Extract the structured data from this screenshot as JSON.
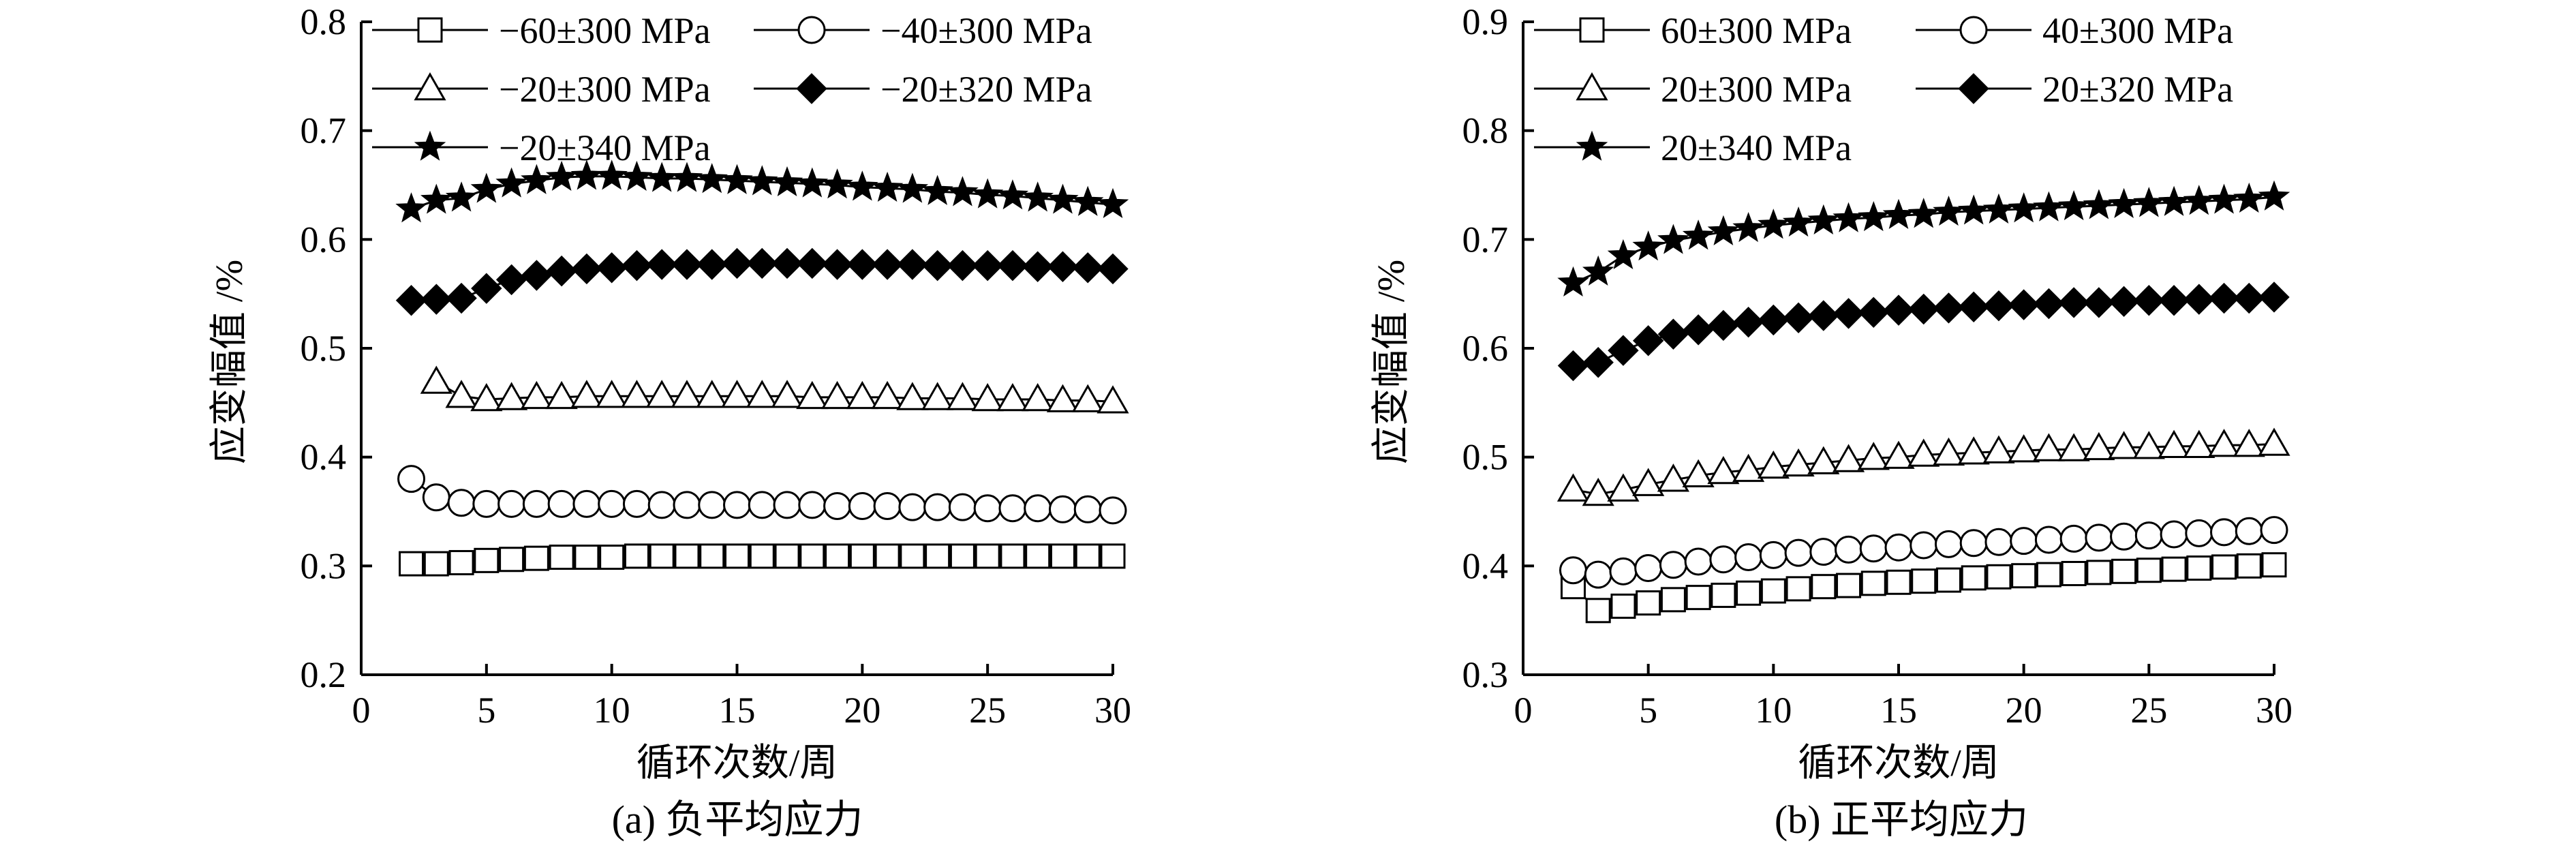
{
  "chart_data": [
    {
      "type": "line",
      "caption": "(a) 负平均应力",
      "ylabel": "应变幅值 /%",
      "xlabel": "循环次数/周",
      "xlim": [
        0,
        30
      ],
      "ylim": [
        0.2,
        0.8
      ],
      "xticks": [
        "0",
        "5",
        "10",
        "15",
        "20",
        "25",
        "30"
      ],
      "yticks": [
        "0.2",
        "0.3",
        "0.4",
        "0.5",
        "0.6",
        "0.7",
        "0.8"
      ],
      "legend": "top-left",
      "series": [
        {
          "name": "−60±300 MPa",
          "marker": "square",
          "x": [
            2,
            3,
            4,
            5,
            6,
            7,
            8,
            9,
            10,
            11,
            12,
            13,
            14,
            15,
            16,
            17,
            18,
            19,
            20,
            21,
            22,
            23,
            24,
            25,
            26,
            27,
            28,
            29,
            30
          ],
          "values": [
            0.302,
            0.302,
            0.303,
            0.305,
            0.306,
            0.307,
            0.308,
            0.308,
            0.308,
            0.309,
            0.309,
            0.309,
            0.309,
            0.309,
            0.309,
            0.309,
            0.309,
            0.309,
            0.309,
            0.309,
            0.309,
            0.309,
            0.309,
            0.309,
            0.309,
            0.309,
            0.309,
            0.309,
            0.309
          ]
        },
        {
          "name": "−40±300 MPa",
          "marker": "circle",
          "x": [
            2,
            3,
            4,
            5,
            6,
            7,
            8,
            9,
            10,
            11,
            12,
            13,
            14,
            15,
            16,
            17,
            18,
            19,
            20,
            21,
            22,
            23,
            24,
            25,
            26,
            27,
            28,
            29,
            30
          ],
          "values": [
            0.38,
            0.363,
            0.358,
            0.357,
            0.357,
            0.357,
            0.357,
            0.357,
            0.357,
            0.357,
            0.356,
            0.356,
            0.356,
            0.356,
            0.356,
            0.356,
            0.356,
            0.355,
            0.355,
            0.355,
            0.354,
            0.354,
            0.354,
            0.353,
            0.353,
            0.353,
            0.352,
            0.352,
            0.351
          ]
        },
        {
          "name": "−20±300 MPa",
          "marker": "triangle",
          "x": [
            3,
            4,
            5,
            6,
            7,
            8,
            9,
            10,
            11,
            12,
            13,
            14,
            15,
            16,
            17,
            18,
            19,
            20,
            21,
            22,
            23,
            24,
            25,
            26,
            27,
            28,
            29,
            30
          ],
          "values": [
            0.469,
            0.456,
            0.453,
            0.454,
            0.455,
            0.455,
            0.456,
            0.456,
            0.456,
            0.456,
            0.456,
            0.456,
            0.456,
            0.456,
            0.456,
            0.455,
            0.455,
            0.455,
            0.455,
            0.454,
            0.454,
            0.454,
            0.453,
            0.453,
            0.453,
            0.452,
            0.452,
            0.451
          ]
        },
        {
          "name": "−20±320 MPa",
          "marker": "diamond",
          "x": [
            2,
            3,
            4,
            5,
            6,
            7,
            8,
            9,
            10,
            11,
            12,
            13,
            14,
            15,
            16,
            17,
            18,
            19,
            20,
            21,
            22,
            23,
            24,
            25,
            26,
            27,
            28,
            29,
            30
          ],
          "values": [
            0.544,
            0.545,
            0.546,
            0.555,
            0.563,
            0.567,
            0.571,
            0.573,
            0.574,
            0.576,
            0.577,
            0.577,
            0.577,
            0.578,
            0.578,
            0.578,
            0.578,
            0.577,
            0.577,
            0.577,
            0.577,
            0.576,
            0.576,
            0.576,
            0.576,
            0.575,
            0.575,
            0.574,
            0.573
          ]
        },
        {
          "name": "−20±340 MPa",
          "marker": "star",
          "x": [
            2,
            3,
            4,
            5,
            6,
            7,
            8,
            9,
            10,
            11,
            12,
            13,
            14,
            15,
            16,
            17,
            18,
            19,
            20,
            21,
            22,
            23,
            24,
            25,
            26,
            27,
            28,
            29,
            30
          ],
          "values": [
            0.628,
            0.636,
            0.638,
            0.646,
            0.651,
            0.654,
            0.657,
            0.658,
            0.658,
            0.657,
            0.656,
            0.656,
            0.655,
            0.654,
            0.653,
            0.652,
            0.651,
            0.65,
            0.648,
            0.647,
            0.646,
            0.644,
            0.643,
            0.641,
            0.64,
            0.638,
            0.636,
            0.634,
            0.632
          ]
        }
      ]
    },
    {
      "type": "line",
      "caption": "(b) 正平均应力",
      "ylabel": "应变幅值 /%",
      "xlabel": "循环次数/周",
      "xlim": [
        0,
        30
      ],
      "ylim": [
        0.3,
        0.9
      ],
      "xticks": [
        "0",
        "5",
        "10",
        "15",
        "20",
        "25",
        "30"
      ],
      "yticks": [
        "0.3",
        "0.4",
        "0.5",
        "0.6",
        "0.7",
        "0.8",
        "0.9"
      ],
      "legend": "top-left",
      "series": [
        {
          "name": "60±300 MPa",
          "marker": "square",
          "x": [
            2,
            3,
            4,
            5,
            6,
            7,
            8,
            9,
            10,
            11,
            12,
            13,
            14,
            15,
            16,
            17,
            18,
            19,
            20,
            21,
            22,
            23,
            24,
            25,
            26,
            27,
            28,
            29,
            30
          ],
          "values": [
            0.381,
            0.359,
            0.363,
            0.366,
            0.369,
            0.371,
            0.373,
            0.375,
            0.377,
            0.379,
            0.381,
            0.382,
            0.384,
            0.385,
            0.386,
            0.387,
            0.389,
            0.39,
            0.391,
            0.392,
            0.393,
            0.394,
            0.395,
            0.396,
            0.397,
            0.398,
            0.399,
            0.4,
            0.401
          ]
        },
        {
          "name": "40±300 MPa",
          "marker": "circle",
          "x": [
            2,
            3,
            4,
            5,
            6,
            7,
            8,
            9,
            10,
            11,
            12,
            13,
            14,
            15,
            16,
            17,
            18,
            19,
            20,
            21,
            22,
            23,
            24,
            25,
            26,
            27,
            28,
            29,
            30
          ],
          "values": [
            0.396,
            0.392,
            0.395,
            0.398,
            0.401,
            0.404,
            0.406,
            0.408,
            0.41,
            0.412,
            0.413,
            0.415,
            0.416,
            0.417,
            0.419,
            0.42,
            0.421,
            0.422,
            0.423,
            0.424,
            0.425,
            0.426,
            0.427,
            0.428,
            0.429,
            0.43,
            0.431,
            0.432,
            0.433
          ]
        },
        {
          "name": "20±300 MPa",
          "marker": "triangle",
          "x": [
            2,
            3,
            4,
            5,
            6,
            7,
            8,
            9,
            10,
            11,
            12,
            13,
            14,
            15,
            16,
            17,
            18,
            19,
            20,
            21,
            22,
            23,
            24,
            25,
            26,
            27,
            28,
            29,
            30
          ],
          "values": [
            0.47,
            0.466,
            0.47,
            0.475,
            0.479,
            0.483,
            0.486,
            0.488,
            0.491,
            0.493,
            0.495,
            0.497,
            0.499,
            0.5,
            0.502,
            0.503,
            0.504,
            0.505,
            0.506,
            0.507,
            0.507,
            0.508,
            0.509,
            0.509,
            0.51,
            0.51,
            0.511,
            0.511,
            0.512
          ]
        },
        {
          "name": "20±320 MPa",
          "marker": "diamond",
          "x": [
            2,
            3,
            4,
            5,
            6,
            7,
            8,
            9,
            10,
            11,
            12,
            13,
            14,
            15,
            16,
            17,
            18,
            19,
            20,
            21,
            22,
            23,
            24,
            25,
            26,
            27,
            28,
            29,
            30
          ],
          "values": [
            0.584,
            0.587,
            0.598,
            0.607,
            0.613,
            0.617,
            0.621,
            0.624,
            0.626,
            0.628,
            0.63,
            0.632,
            0.633,
            0.635,
            0.636,
            0.637,
            0.638,
            0.639,
            0.64,
            0.641,
            0.642,
            0.642,
            0.643,
            0.644,
            0.644,
            0.645,
            0.646,
            0.646,
            0.647
          ]
        },
        {
          "name": "20±340 MPa",
          "marker": "star",
          "x": [
            2,
            3,
            4,
            5,
            6,
            7,
            8,
            9,
            10,
            11,
            12,
            13,
            14,
            15,
            16,
            17,
            18,
            19,
            20,
            21,
            22,
            23,
            24,
            25,
            26,
            27,
            28,
            29,
            30
          ],
          "values": [
            0.66,
            0.67,
            0.685,
            0.693,
            0.699,
            0.703,
            0.707,
            0.71,
            0.713,
            0.715,
            0.717,
            0.719,
            0.72,
            0.722,
            0.723,
            0.725,
            0.726,
            0.727,
            0.728,
            0.729,
            0.73,
            0.731,
            0.732,
            0.733,
            0.734,
            0.735,
            0.736,
            0.737,
            0.739
          ]
        }
      ]
    }
  ]
}
